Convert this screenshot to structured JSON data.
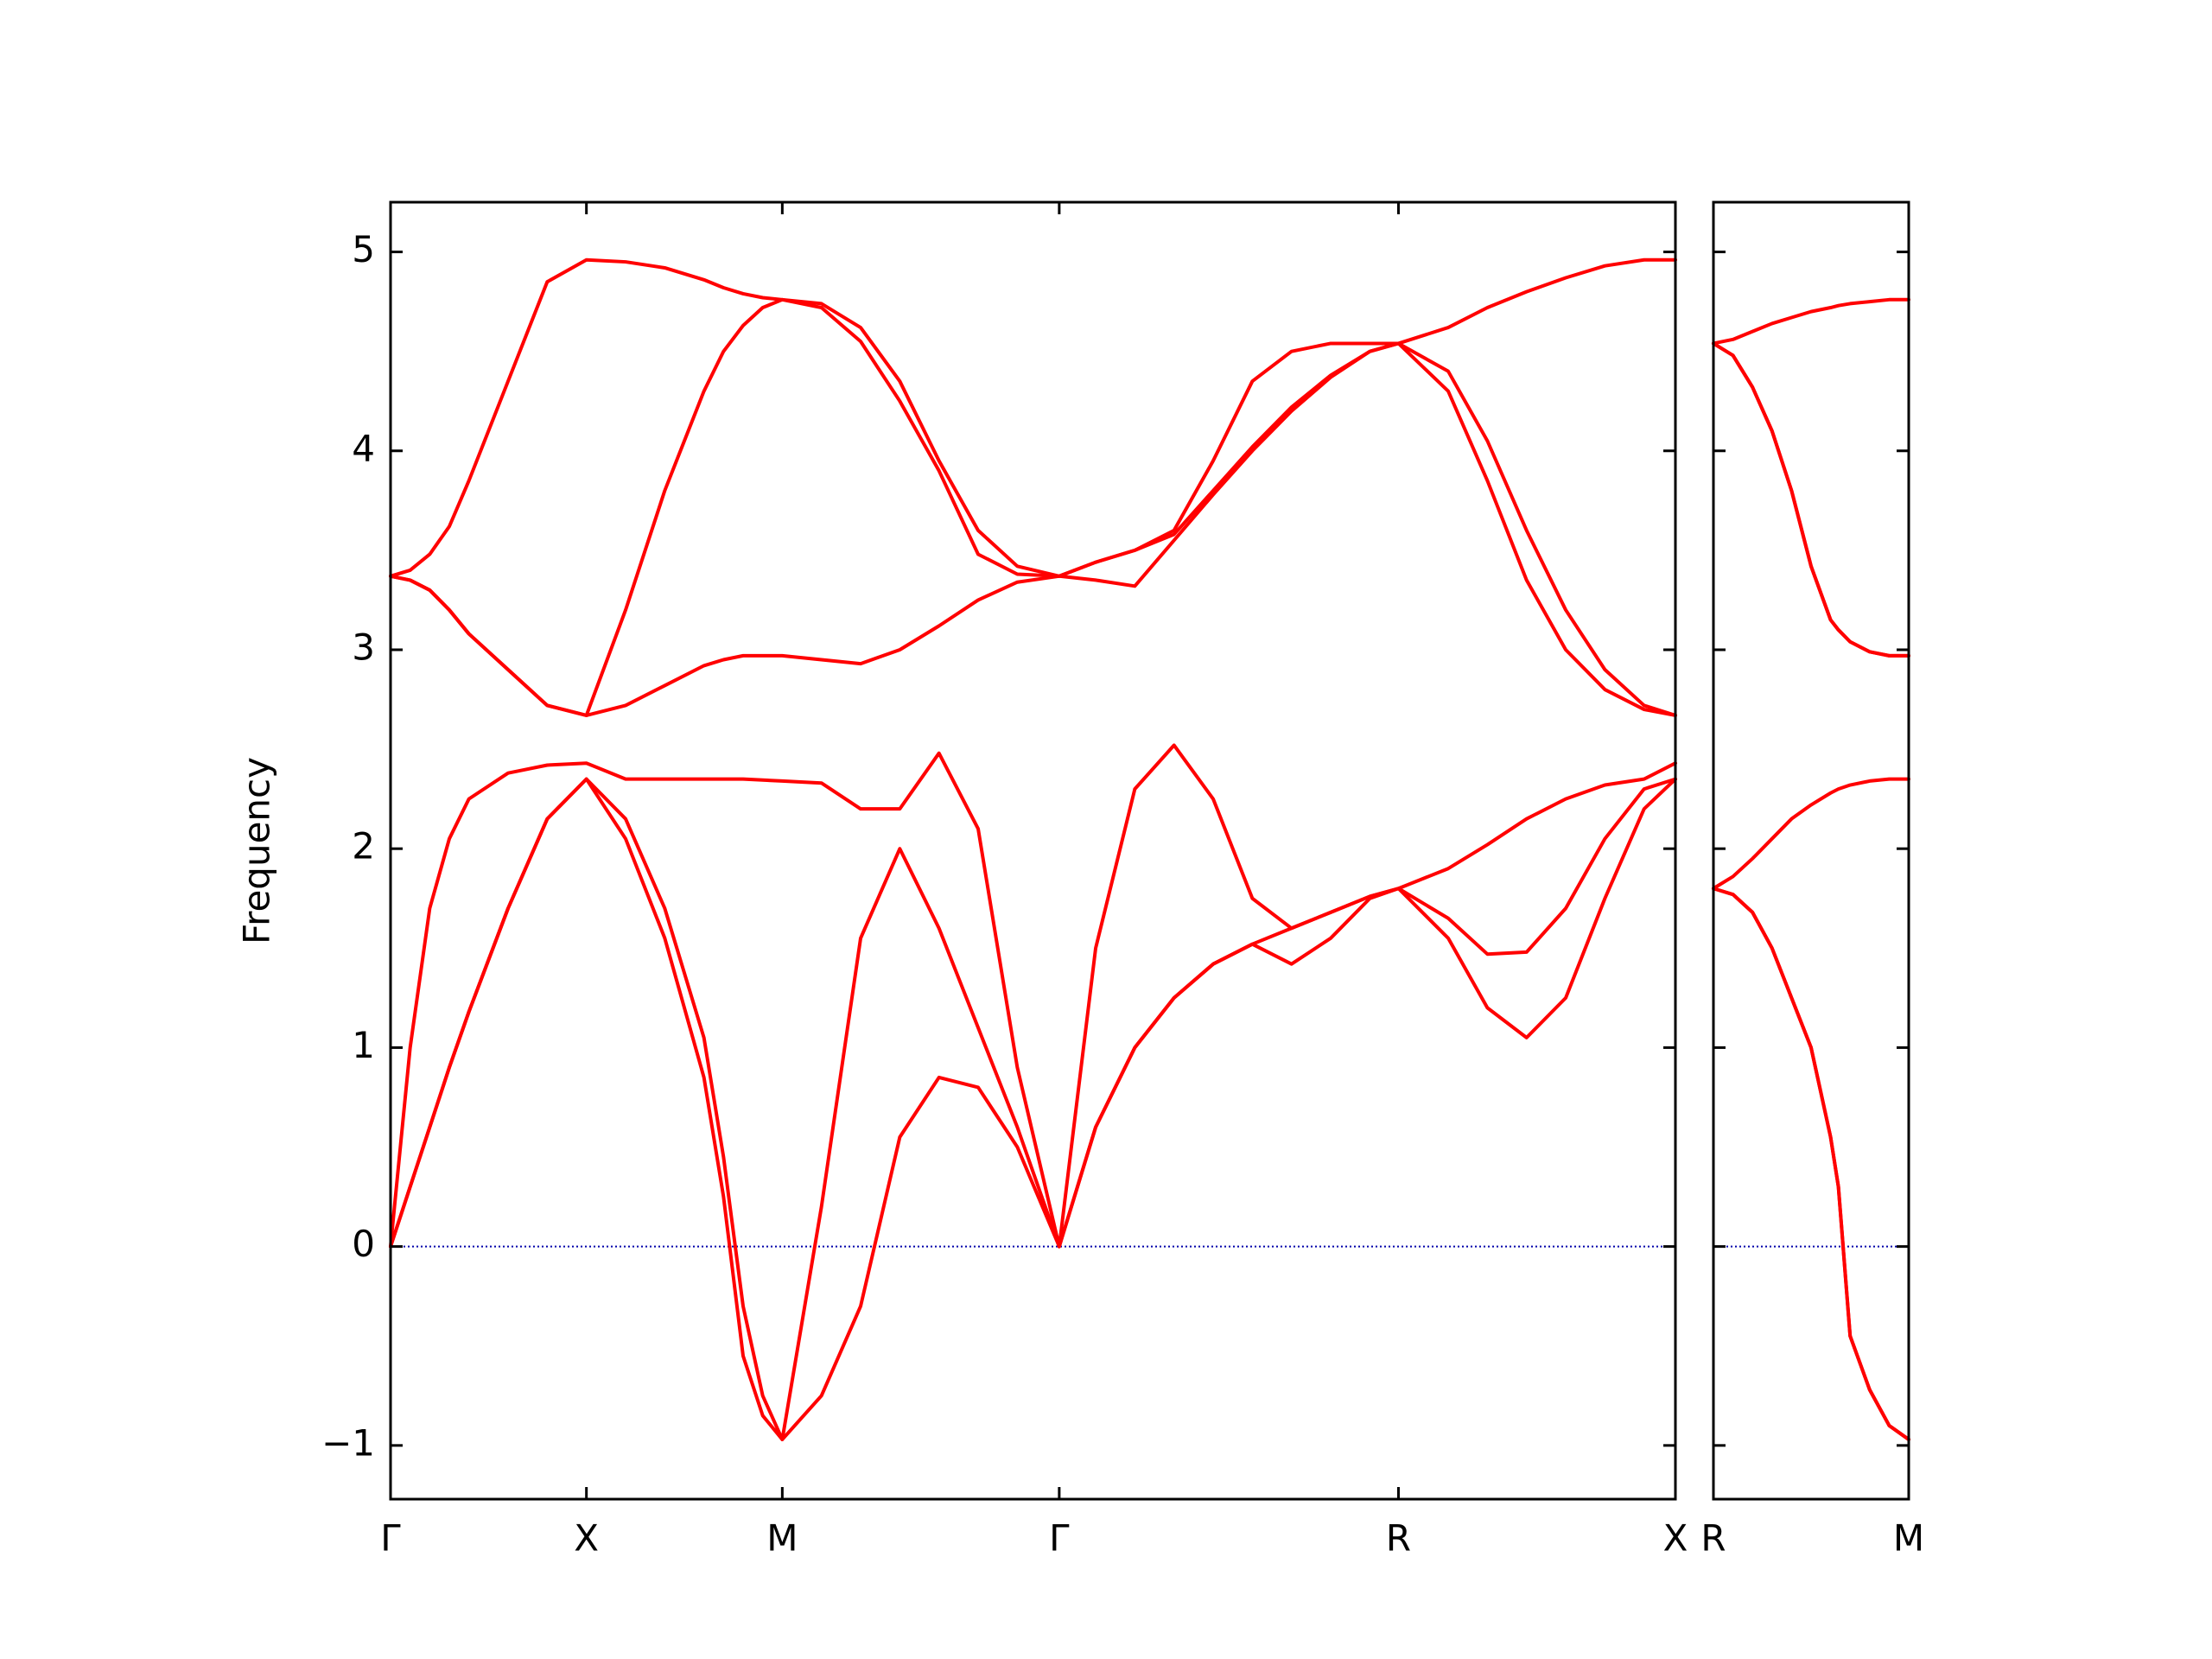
{
  "chart_data": [
    {
      "type": "line",
      "ylabel": "Frequency",
      "x": [
        0,
        0.05,
        0.1,
        0.15,
        0.2,
        0.3,
        0.4,
        0.5,
        0.6,
        0.7,
        0.8,
        0.85,
        0.9,
        0.95,
        1.0,
        1.1,
        1.2,
        1.3,
        1.4,
        1.5,
        1.6,
        1.707,
        1.8,
        1.9,
        2.0,
        2.1,
        2.2,
        2.3,
        2.4,
        2.5,
        2.573,
        2.7,
        2.8,
        2.9,
        3.0,
        3.1,
        3.2,
        3.28
      ],
      "xlim": [
        0,
        3.28
      ],
      "xticks": [
        {
          "value": 0,
          "label": "Γ"
        },
        {
          "value": 0.5,
          "label": "X"
        },
        {
          "value": 1.0,
          "label": "M"
        },
        {
          "value": 1.707,
          "label": "Γ"
        },
        {
          "value": 2.573,
          "label": "R"
        },
        {
          "value": 3.28,
          "label": "X"
        }
      ],
      "ylim": [
        -1.27,
        5.25
      ],
      "yticks": [
        {
          "value": -1,
          "label": "−1"
        },
        0,
        1,
        2,
        3,
        4,
        5
      ],
      "ytick_labels": true,
      "reference_line": {
        "y": 0,
        "color": "#0000aa",
        "style": "dotted"
      },
      "series": [
        {
          "color": "#ff0000",
          "values": [
            0,
            0.3,
            0.6,
            0.9,
            1.18,
            1.7,
            2.15,
            2.35,
            2.05,
            1.55,
            0.85,
            0.25,
            -0.55,
            -0.85,
            -0.97,
            -0.75,
            -0.3,
            0.55,
            0.85,
            0.8,
            0.5,
            0,
            0.6,
            1.0,
            1.25,
            1.42,
            1.52,
            1.42,
            1.55,
            1.75,
            1.8,
            1.55,
            1.2,
            1.05,
            1.25,
            1.75,
            2.2,
            2.35
          ]
        },
        {
          "color": "#ff0000",
          "values": [
            0,
            0.3,
            0.6,
            0.9,
            1.18,
            1.7,
            2.15,
            2.35,
            2.15,
            1.7,
            1.05,
            0.45,
            -0.3,
            -0.75,
            -0.97,
            0.2,
            1.55,
            2.0,
            1.6,
            1.1,
            0.6,
            0,
            0.6,
            1.0,
            1.25,
            1.42,
            1.52,
            1.6,
            1.68,
            1.76,
            1.8,
            1.65,
            1.47,
            1.48,
            1.7,
            2.05,
            2.3,
            2.35
          ]
        },
        {
          "color": "#ff0000",
          "values": [
            0,
            1.0,
            1.7,
            2.05,
            2.25,
            2.38,
            2.42,
            2.43,
            2.35,
            2.35,
            2.35,
            2.35,
            2.35,
            2.345,
            2.34,
            2.33,
            2.2,
            2.2,
            2.48,
            2.1,
            0.9,
            0,
            1.5,
            2.3,
            2.52,
            2.25,
            1.75,
            1.6,
            1.68,
            1.76,
            1.8,
            1.9,
            2.02,
            2.15,
            2.25,
            2.32,
            2.35,
            2.43
          ]
        },
        {
          "color": "#ff0000",
          "values": [
            3.37,
            3.35,
            3.3,
            3.2,
            3.08,
            2.9,
            2.72,
            2.67,
            2.72,
            2.82,
            2.92,
            2.95,
            2.97,
            2.97,
            2.97,
            2.95,
            2.93,
            3.0,
            3.12,
            3.25,
            3.34,
            3.37,
            3.35,
            3.32,
            3.55,
            3.78,
            4.0,
            4.2,
            4.37,
            4.5,
            4.54,
            4.3,
            3.85,
            3.35,
            3.0,
            2.8,
            2.7,
            2.67
          ]
        },
        {
          "color": "#ff0000",
          "values": [
            3.37,
            3.35,
            3.3,
            3.2,
            3.08,
            2.9,
            2.72,
            2.67,
            3.2,
            3.8,
            4.3,
            4.5,
            4.63,
            4.72,
            4.76,
            4.72,
            4.55,
            4.25,
            3.9,
            3.48,
            3.38,
            3.37,
            3.44,
            3.5,
            3.58,
            3.8,
            4.02,
            4.22,
            4.38,
            4.5,
            4.54,
            4.4,
            4.05,
            3.6,
            3.2,
            2.9,
            2.72,
            2.67
          ]
        },
        {
          "color": "#ff0000",
          "values": [
            3.37,
            3.4,
            3.48,
            3.62,
            3.85,
            4.35,
            4.85,
            4.96,
            4.95,
            4.92,
            4.86,
            4.82,
            4.79,
            4.77,
            4.76,
            4.74,
            4.62,
            4.35,
            3.95,
            3.6,
            3.42,
            3.37,
            3.44,
            3.5,
            3.6,
            3.95,
            4.35,
            4.5,
            4.54,
            4.54,
            4.54,
            4.62,
            4.72,
            4.8,
            4.87,
            4.93,
            4.96,
            4.96
          ]
        }
      ]
    },
    {
      "type": "line",
      "x": [
        0,
        0.05,
        0.1,
        0.15,
        0.2,
        0.25,
        0.3,
        0.32,
        0.35,
        0.4,
        0.45,
        0.5
      ],
      "xlim": [
        0,
        0.5
      ],
      "xticks": [
        {
          "value": 0,
          "label": "R"
        },
        {
          "value": 0.5,
          "label": "M"
        }
      ],
      "ylim": [
        -1.27,
        5.25
      ],
      "yticks": [
        -1,
        0,
        1,
        2,
        3,
        4,
        5
      ],
      "ytick_labels": false,
      "reference_line": {
        "y": 0,
        "color": "#0000aa",
        "style": "dotted"
      },
      "series": [
        {
          "color": "#ff0000",
          "values": [
            1.8,
            1.77,
            1.68,
            1.5,
            1.25,
            1.0,
            0.55,
            0.3,
            -0.45,
            -0.72,
            -0.9,
            -0.97
          ]
        },
        {
          "color": "#ff0000",
          "values": [
            1.8,
            1.77,
            1.68,
            1.5,
            1.25,
            1.0,
            0.55,
            0.3,
            -0.45,
            -0.72,
            -0.9,
            -0.97
          ]
        },
        {
          "color": "#ff0000",
          "values": [
            1.8,
            1.86,
            1.95,
            2.05,
            2.15,
            2.22,
            2.28,
            2.3,
            2.32,
            2.34,
            2.35,
            2.35
          ]
        },
        {
          "color": "#ff0000",
          "values": [
            4.54,
            4.48,
            4.32,
            4.1,
            3.8,
            3.42,
            3.15,
            3.1,
            3.04,
            2.99,
            2.97,
            2.97
          ]
        },
        {
          "color": "#ff0000",
          "values": [
            4.54,
            4.48,
            4.32,
            4.1,
            3.8,
            3.42,
            3.15,
            3.1,
            3.04,
            2.99,
            2.97,
            2.97
          ]
        },
        {
          "color": "#ff0000",
          "values": [
            4.54,
            4.56,
            4.6,
            4.64,
            4.67,
            4.7,
            4.72,
            4.73,
            4.74,
            4.75,
            4.76,
            4.76
          ]
        }
      ]
    }
  ]
}
